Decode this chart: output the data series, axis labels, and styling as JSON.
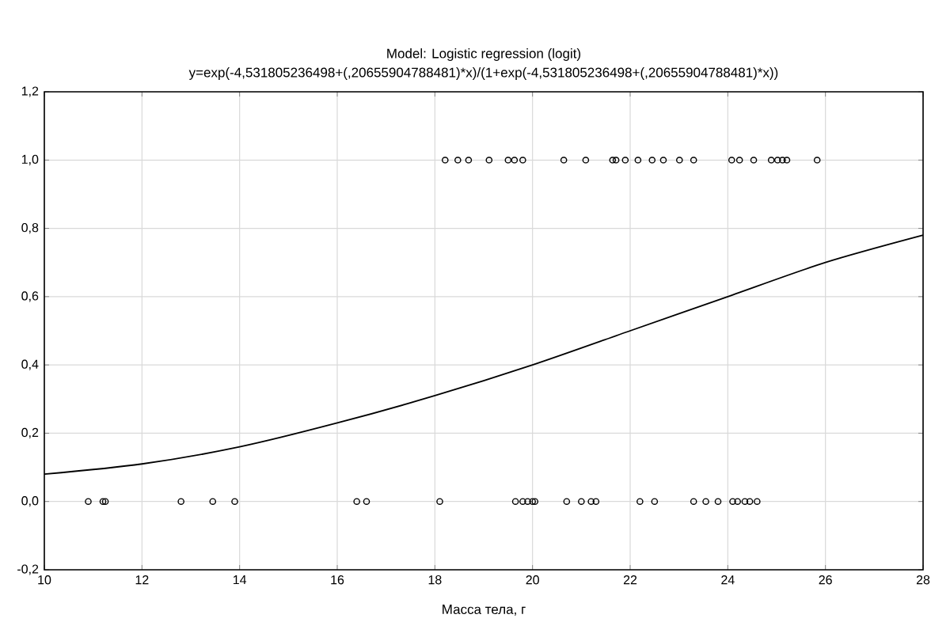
{
  "chart_data": {
    "type": "scatter",
    "title": "Model: Logistic regression (logit)",
    "subtitle": "y=exp(-4,531805236498+(,20655904788481)*x)/(1+exp(-4,531805236498+(,20655904788481)*x))",
    "xlabel": "Масса тела, г",
    "xlim": [
      10,
      28
    ],
    "xticks": [
      10,
      12,
      14,
      16,
      18,
      20,
      22,
      24,
      26,
      28
    ],
    "ylim": [
      -0.2,
      1.2
    ],
    "yticks": [
      {
        "value": -0.2,
        "label": "-0,2"
      },
      {
        "value": 0,
        "label": "0,0"
      },
      {
        "value": 0.2,
        "label": "0,2"
      },
      {
        "value": 0.4,
        "label": "0,4"
      },
      {
        "value": 0.6,
        "label": "0,6"
      },
      {
        "value": 0.8,
        "label": "0,8"
      },
      {
        "value": 1.0,
        "label": "1,0"
      },
      {
        "value": 1.2,
        "label": "1,2"
      }
    ],
    "grid": true,
    "series": [
      {
        "color": "#000000",
        "marker": "circle",
        "x": [
          18.21,
          18.47,
          18.69,
          19.11,
          19.5,
          19.63,
          19.8,
          20.64,
          21.09,
          21.64,
          21.71,
          21.9,
          22.16,
          22.45,
          22.68,
          23.01,
          23.3,
          24.08,
          24.24,
          24.53,
          24.89,
          25.02,
          25.12,
          25.21,
          25.83,
          10.9,
          11.2,
          11.25,
          12.8,
          13.45,
          13.9,
          16.4,
          16.6,
          18.1,
          19.65,
          19.8,
          19.9,
          20.0,
          20.05,
          20.7,
          21.0,
          21.2,
          21.3,
          22.2,
          22.5,
          23.3,
          23.55,
          23.8,
          24.1,
          24.2,
          24.35,
          24.45,
          24.6
        ],
        "values": [
          1,
          1,
          1,
          1,
          1,
          1,
          1,
          1,
          1,
          1,
          1,
          1,
          1,
          1,
          1,
          1,
          1,
          1,
          1,
          1,
          1,
          1,
          1,
          1,
          1,
          0,
          0,
          0,
          0,
          0,
          0,
          0,
          0,
          0,
          0,
          0,
          0,
          0,
          0,
          0,
          0,
          0,
          0,
          0,
          0,
          0,
          0,
          0,
          0,
          0,
          0,
          0,
          0
        ]
      },
      {
        "type": "line",
        "color": "#000000",
        "marker": "none",
        "line_style": "solid",
        "x": [
          10,
          12,
          14,
          16,
          18,
          20,
          22,
          24,
          26,
          28
        ],
        "values": [
          0.08,
          0.11,
          0.16,
          0.23,
          0.31,
          0.4,
          0.5,
          0.6,
          0.7,
          0.78
        ]
      }
    ]
  }
}
